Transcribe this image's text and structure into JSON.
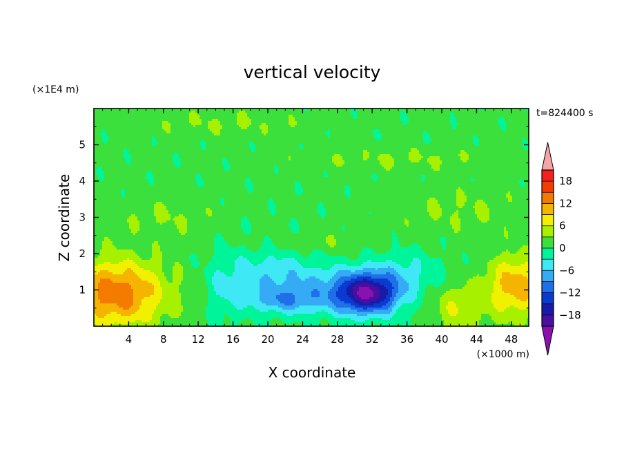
{
  "chart_data": {
    "type": "heatmap",
    "title": "vertical velocity",
    "xlabel": "X coordinate",
    "ylabel": "Z coordinate",
    "x_unit_label": "(×1000 m)",
    "y_unit_label": "(×1E4 m)",
    "time_label": "t=824400 s",
    "x_range": [
      0,
      50
    ],
    "y_range": [
      0,
      6
    ],
    "x_ticks": [
      4,
      8,
      12,
      16,
      20,
      24,
      28,
      32,
      36,
      40,
      44,
      48
    ],
    "x_tick_labels": [
      "4",
      "8",
      "12",
      "16",
      "20",
      "24",
      "28",
      "32",
      "36",
      "40",
      "44",
      "48"
    ],
    "y_ticks": [
      1,
      2,
      3,
      4,
      5
    ],
    "y_tick_labels": [
      "1",
      "2",
      "3",
      "4",
      "5"
    ],
    "colorbar": {
      "levels": [
        -21,
        -18,
        -15,
        -12,
        -9,
        -6,
        -3,
        0,
        3,
        6,
        9,
        12,
        15,
        18,
        21
      ],
      "label_values": [
        18,
        12,
        6,
        0,
        -6,
        -12,
        -18
      ],
      "label_texts": [
        "18",
        "12",
        "6",
        "0",
        "−6",
        "−12",
        "−18"
      ],
      "colors": [
        "#8b10b0",
        "#4b0fa0",
        "#1a1aa8",
        "#0a3ad0",
        "#1f6fe8",
        "#35aaf5",
        "#3ee8f5",
        "#00f59a",
        "#3ce03c",
        "#a6f000",
        "#f0f000",
        "#f5b400",
        "#f57a00",
        "#f53c00",
        "#f51f1f",
        "#f5a5a5"
      ],
      "extend": "both"
    },
    "field": {
      "background": 1,
      "features": [
        {
          "cx": 2.5,
          "cz": 0.9,
          "sx": 5.5,
          "sz": 0.9,
          "amp": 13
        },
        {
          "cx": 48.5,
          "cz": 1.1,
          "sx": 3.2,
          "sz": 0.8,
          "amp": 10
        },
        {
          "cx": 42.0,
          "cz": 0.5,
          "sx": 3.0,
          "sz": 0.7,
          "amp": 5
        },
        {
          "cx": 31.5,
          "cz": 0.9,
          "sx": 3.5,
          "sz": 0.55,
          "amp": -19
        },
        {
          "cx": 26.0,
          "cz": 1.0,
          "sx": 8.0,
          "sz": 0.7,
          "amp": -6
        },
        {
          "cx": 20.0,
          "cz": 1.5,
          "sx": 5.0,
          "sz": 0.9,
          "amp": -4
        },
        {
          "cx": 36.0,
          "cz": 1.5,
          "sx": 4.0,
          "sz": 0.6,
          "amp": -4
        },
        {
          "cx": 22.0,
          "cz": 0.7,
          "sx": 4.0,
          "sz": 0.3,
          "amp": -5
        },
        {
          "cx": 15.0,
          "cz": 1.1,
          "sx": 2.0,
          "sz": 1.0,
          "amp": -3
        },
        {
          "cx": 8.0,
          "cz": 3.0,
          "sx": 6.0,
          "sz": 0.5,
          "amp": 2
        },
        {
          "cx": 42.0,
          "cz": 3.2,
          "sx": 8.0,
          "sz": 0.6,
          "amp": 2
        },
        {
          "cx": 15.0,
          "cz": 5.6,
          "sx": 10.0,
          "sz": 0.35,
          "amp": 2
        },
        {
          "cx": 35.0,
          "cz": 4.6,
          "sx": 12.0,
          "sz": 0.3,
          "amp": 2
        },
        {
          "cx": 24.0,
          "cz": 2.3,
          "sx": 8.0,
          "sz": 0.3,
          "amp": 2
        }
      ]
    }
  }
}
